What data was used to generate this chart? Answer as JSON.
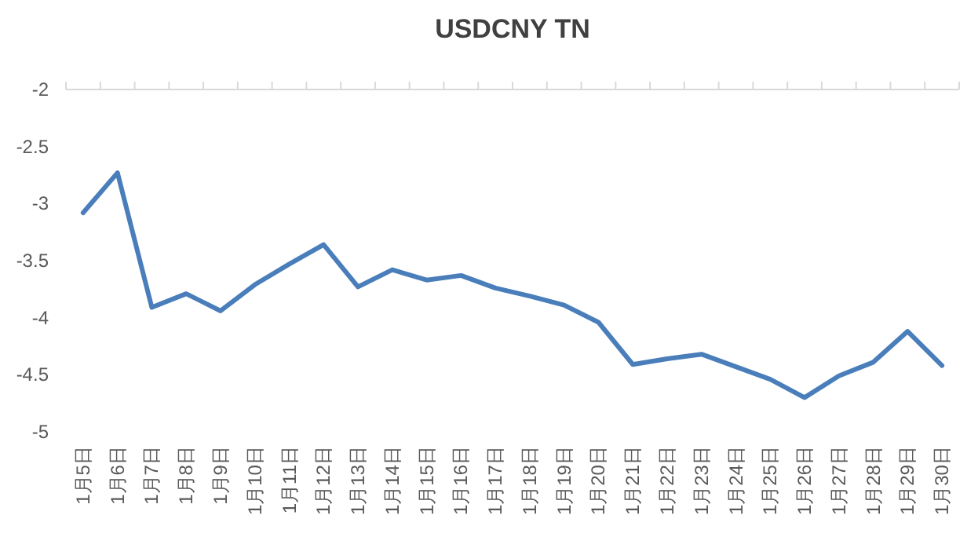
{
  "chart_data": {
    "type": "line",
    "title": "USDCNY TN",
    "categories": [
      "1月5日",
      "1月6日",
      "1月7日",
      "1月8日",
      "1月9日",
      "1月10日",
      "1月11日",
      "1月12日",
      "1月13日",
      "1月14日",
      "1月15日",
      "1月16日",
      "1月17日",
      "1月18日",
      "1月19日",
      "1月20日",
      "1月21日",
      "1月22日",
      "1月23日",
      "1月24日",
      "1月25日",
      "1月26日",
      "1月27日",
      "1月28日",
      "1月29日",
      "1月30日"
    ],
    "series": [
      {
        "color": "#4a7ebb",
        "values": [
          -3.08,
          -2.73,
          -3.91,
          -3.79,
          -3.94,
          -3.71,
          -3.53,
          -3.36,
          -3.73,
          -3.58,
          -3.67,
          -3.63,
          -3.74,
          -3.81,
          -3.89,
          -4.04,
          -4.41,
          -4.36,
          -4.32,
          -4.43,
          -4.54,
          -4.7,
          -4.51,
          -4.39,
          -4.12,
          -4.42
        ]
      }
    ],
    "ylim": [
      -5,
      -2
    ],
    "yticks": [
      -5,
      -4.5,
      -4,
      -3.5,
      -3,
      -2.5,
      -2
    ],
    "grid": false,
    "marker": "none",
    "line_style": "solid"
  }
}
